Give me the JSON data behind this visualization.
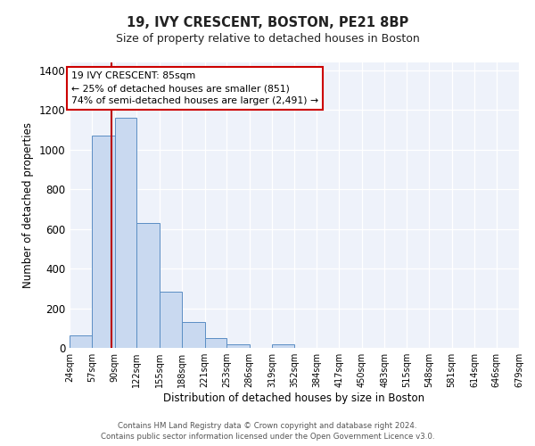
{
  "title": "19, IVY CRESCENT, BOSTON, PE21 8BP",
  "subtitle": "Size of property relative to detached houses in Boston",
  "xlabel": "Distribution of detached houses by size in Boston",
  "ylabel": "Number of detached properties",
  "bar_color": "#c9d9f0",
  "bar_edge_color": "#5b8ec4",
  "annotation_box_edge": "#cc0000",
  "redline_x": 85,
  "annotation_line1": "19 IVY CRESCENT: 85sqm",
  "annotation_line2": "← 25% of detached houses are smaller (851)",
  "annotation_line3": "74% of semi-detached houses are larger (2,491) →",
  "bin_edges": [
    24,
    57,
    90,
    122,
    155,
    188,
    221,
    253,
    286,
    319,
    352,
    384,
    417,
    450,
    483,
    515,
    548,
    581,
    614,
    646,
    679
  ],
  "bar_heights": [
    65,
    1070,
    1160,
    630,
    285,
    130,
    48,
    20,
    0,
    20,
    0,
    0,
    0,
    0,
    0,
    0,
    0,
    0,
    0,
    0
  ],
  "ylim": [
    0,
    1440
  ],
  "yticks": [
    0,
    200,
    400,
    600,
    800,
    1000,
    1200,
    1400
  ],
  "footnote1": "Contains HM Land Registry data © Crown copyright and database right 2024.",
  "footnote2": "Contains public sector information licensed under the Open Government Licence v3.0.",
  "background_color": "#eef2fa"
}
